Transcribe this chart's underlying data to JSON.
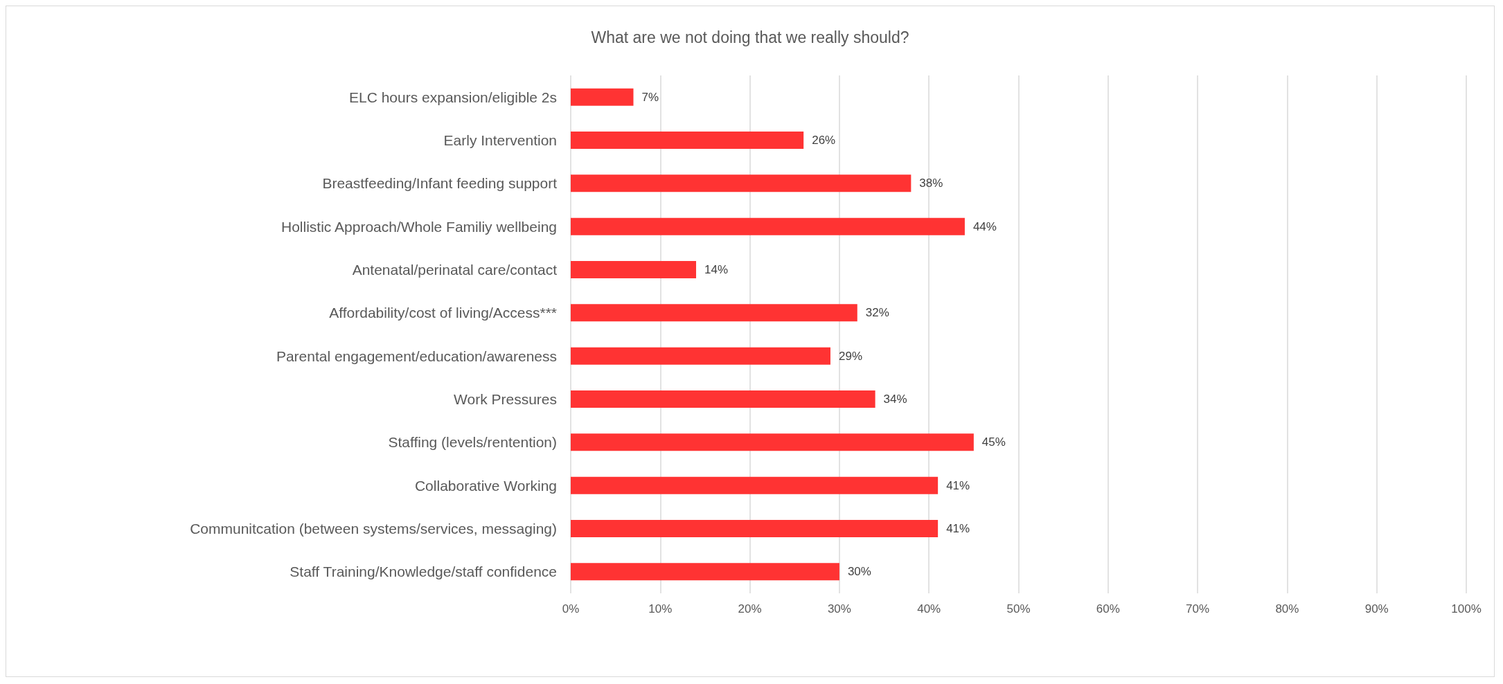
{
  "chart_data": {
    "type": "bar",
    "orientation": "horizontal",
    "title": "What are we not doing that we really should?",
    "categories": [
      "ELC hours expansion/eligible 2s",
      "Early Intervention",
      "Breastfeeding/Infant feeding support",
      "Hollistic Approach/Whole Familiy wellbeing",
      "Antenatal/perinatal care/contact",
      "Affordability/cost of living/Access***",
      "Parental engagement/education/awareness",
      "Work Pressures",
      "Staffing (levels/rentention)",
      "Collaborative Working",
      "Communitcation (between systems/services, messaging)",
      "Staff Training/Knowledge/staff confidence"
    ],
    "values": [
      7,
      26,
      38,
      44,
      14,
      32,
      29,
      34,
      45,
      41,
      41,
      30
    ],
    "value_labels": [
      "7%",
      "26%",
      "38%",
      "44%",
      "14%",
      "32%",
      "29%",
      "34%",
      "45%",
      "41%",
      "41%",
      "30%"
    ],
    "color": "#ff3333",
    "xlim": [
      0,
      100
    ],
    "xticks": [
      {
        "value": 0,
        "label": "0%"
      },
      {
        "value": 10,
        "label": "10%"
      },
      {
        "value": 20,
        "label": "20%"
      },
      {
        "value": 30,
        "label": "30%"
      },
      {
        "value": 40,
        "label": "40%"
      },
      {
        "value": 50,
        "label": "50%"
      },
      {
        "value": 60,
        "label": "60%"
      },
      {
        "value": 70,
        "label": "70%"
      },
      {
        "value": 80,
        "label": "80%"
      },
      {
        "value": 90,
        "label": "90%"
      },
      {
        "value": 100,
        "label": "100%"
      }
    ],
    "grid": "x"
  }
}
